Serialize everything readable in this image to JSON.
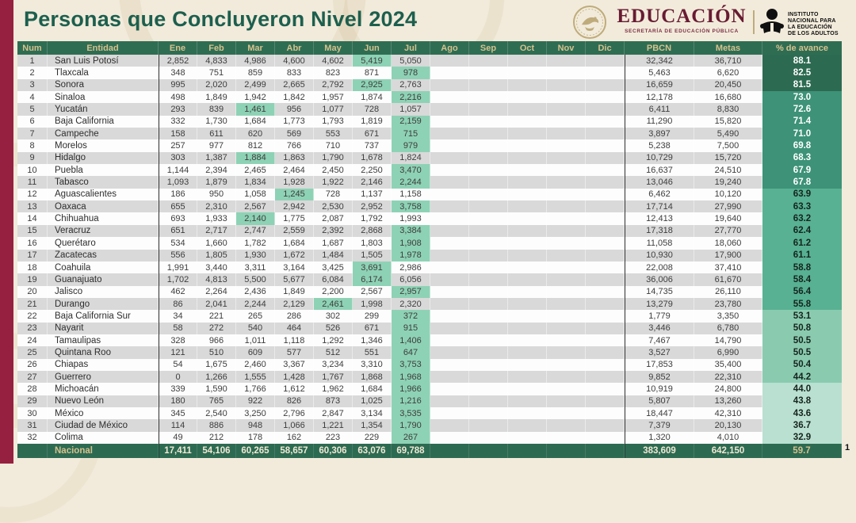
{
  "title": "Personas que Concluyeron Nivel 2024",
  "page_number": "1",
  "logos": {
    "educacion": {
      "name": "EDUCACIÓN",
      "subtitle": "SECRETARÍA DE EDUCACIÓN PÚBLICA"
    },
    "inea": {
      "line1": "INSTITUTO",
      "line2": "NACIONAL PARA",
      "line3": "LA EDUCACIÓN",
      "line4": "DE LOS ADULTOS"
    }
  },
  "colors": {
    "maroon_bar": "#96203f",
    "title_green": "#1d5f4e",
    "header_green": "#2f6d53",
    "header_text": "#d5c28e",
    "stripe_gray": "#d9d9d9",
    "highlight_mint": "#8ed2b5",
    "avance_bands": [
      "#2d6a52",
      "#3d9277",
      "#57b192",
      "#8acbb0",
      "#b9e0d1"
    ],
    "educacion_maroon": "#681b32",
    "gold": "#bfac7c"
  },
  "table": {
    "columns": [
      "Num",
      "Entidad",
      "Ene",
      "Feb",
      "Mar",
      "Abr",
      "May",
      "Jun",
      "Jul",
      "Ago",
      "Sep",
      "Oct",
      "Nov",
      "Dic",
      "PBCN",
      "Metas",
      "% de avance"
    ],
    "rows": [
      {
        "num": 1,
        "entidad": "San Luis Potosí",
        "months": [
          "2,852",
          "4,833",
          "4,986",
          "4,600",
          "4,602",
          "5,419",
          "5,050",
          "",
          "",
          "",
          "",
          ""
        ],
        "max_month": 5,
        "pbcn": "32,342",
        "metas": "36,710",
        "avance": "88.1",
        "band": 1
      },
      {
        "num": 2,
        "entidad": "Tlaxcala",
        "months": [
          "348",
          "751",
          "859",
          "833",
          "823",
          "871",
          "978",
          "",
          "",
          "",
          "",
          ""
        ],
        "max_month": 6,
        "pbcn": "5,463",
        "metas": "6,620",
        "avance": "82.5",
        "band": 1
      },
      {
        "num": 3,
        "entidad": "Sonora",
        "months": [
          "995",
          "2,020",
          "2,499",
          "2,665",
          "2,792",
          "2,925",
          "2,763",
          "",
          "",
          "",
          "",
          ""
        ],
        "max_month": 5,
        "pbcn": "16,659",
        "metas": "20,450",
        "avance": "81.5",
        "band": 1
      },
      {
        "num": 4,
        "entidad": "Sinaloa",
        "months": [
          "498",
          "1,849",
          "1,942",
          "1,842",
          "1,957",
          "1,874",
          "2,216",
          "",
          "",
          "",
          "",
          ""
        ],
        "max_month": 6,
        "pbcn": "12,178",
        "metas": "16,680",
        "avance": "73.0",
        "band": 2
      },
      {
        "num": 5,
        "entidad": "Yucatán",
        "months": [
          "293",
          "839",
          "1,461",
          "956",
          "1,077",
          "728",
          "1,057",
          "",
          "",
          "",
          "",
          ""
        ],
        "max_month": 2,
        "pbcn": "6,411",
        "metas": "8,830",
        "avance": "72.6",
        "band": 2
      },
      {
        "num": 6,
        "entidad": "Baja California",
        "months": [
          "332",
          "1,730",
          "1,684",
          "1,773",
          "1,793",
          "1,819",
          "2,159",
          "",
          "",
          "",
          "",
          ""
        ],
        "max_month": 6,
        "pbcn": "11,290",
        "metas": "15,820",
        "avance": "71.4",
        "band": 2
      },
      {
        "num": 7,
        "entidad": "Campeche",
        "months": [
          "158",
          "611",
          "620",
          "569",
          "553",
          "671",
          "715",
          "",
          "",
          "",
          "",
          ""
        ],
        "max_month": 6,
        "pbcn": "3,897",
        "metas": "5,490",
        "avance": "71.0",
        "band": 2
      },
      {
        "num": 8,
        "entidad": "Morelos",
        "months": [
          "257",
          "977",
          "812",
          "766",
          "710",
          "737",
          "979",
          "",
          "",
          "",
          "",
          ""
        ],
        "max_month": 6,
        "pbcn": "5,238",
        "metas": "7,500",
        "avance": "69.8",
        "band": 2
      },
      {
        "num": 9,
        "entidad": "Hidalgo",
        "months": [
          "303",
          "1,387",
          "1,884",
          "1,863",
          "1,790",
          "1,678",
          "1,824",
          "",
          "",
          "",
          "",
          ""
        ],
        "max_month": 2,
        "pbcn": "10,729",
        "metas": "15,720",
        "avance": "68.3",
        "band": 2
      },
      {
        "num": 10,
        "entidad": "Puebla",
        "months": [
          "1,144",
          "2,394",
          "2,465",
          "2,464",
          "2,450",
          "2,250",
          "3,470",
          "",
          "",
          "",
          "",
          ""
        ],
        "max_month": 6,
        "pbcn": "16,637",
        "metas": "24,510",
        "avance": "67.9",
        "band": 2
      },
      {
        "num": 11,
        "entidad": "Tabasco",
        "months": [
          "1,093",
          "1,879",
          "1,834",
          "1,928",
          "1,922",
          "2,146",
          "2,244",
          "",
          "",
          "",
          "",
          ""
        ],
        "max_month": 6,
        "pbcn": "13,046",
        "metas": "19,240",
        "avance": "67.8",
        "band": 2
      },
      {
        "num": 12,
        "entidad": "Aguascalientes",
        "months": [
          "186",
          "950",
          "1,058",
          "1,245",
          "728",
          "1,137",
          "1,158",
          "",
          "",
          "",
          "",
          ""
        ],
        "max_month": 3,
        "pbcn": "6,462",
        "metas": "10,120",
        "avance": "63.9",
        "band": 3
      },
      {
        "num": 13,
        "entidad": "Oaxaca",
        "months": [
          "655",
          "2,310",
          "2,567",
          "2,942",
          "2,530",
          "2,952",
          "3,758",
          "",
          "",
          "",
          "",
          ""
        ],
        "max_month": 6,
        "pbcn": "17,714",
        "metas": "27,990",
        "avance": "63.3",
        "band": 3
      },
      {
        "num": 14,
        "entidad": "Chihuahua",
        "months": [
          "693",
          "1,933",
          "2,140",
          "1,775",
          "2,087",
          "1,792",
          "1,993",
          "",
          "",
          "",
          "",
          ""
        ],
        "max_month": 2,
        "pbcn": "12,413",
        "metas": "19,640",
        "avance": "63.2",
        "band": 3
      },
      {
        "num": 15,
        "entidad": "Veracruz",
        "months": [
          "651",
          "2,717",
          "2,747",
          "2,559",
          "2,392",
          "2,868",
          "3,384",
          "",
          "",
          "",
          "",
          ""
        ],
        "max_month": 6,
        "pbcn": "17,318",
        "metas": "27,770",
        "avance": "62.4",
        "band": 3
      },
      {
        "num": 16,
        "entidad": "Querétaro",
        "months": [
          "534",
          "1,660",
          "1,782",
          "1,684",
          "1,687",
          "1,803",
          "1,908",
          "",
          "",
          "",
          "",
          ""
        ],
        "max_month": 6,
        "pbcn": "11,058",
        "metas": "18,060",
        "avance": "61.2",
        "band": 3
      },
      {
        "num": 17,
        "entidad": "Zacatecas",
        "months": [
          "556",
          "1,805",
          "1,930",
          "1,672",
          "1,484",
          "1,505",
          "1,978",
          "",
          "",
          "",
          "",
          ""
        ],
        "max_month": 6,
        "pbcn": "10,930",
        "metas": "17,900",
        "avance": "61.1",
        "band": 3
      },
      {
        "num": 18,
        "entidad": "Coahuila",
        "months": [
          "1,991",
          "3,440",
          "3,311",
          "3,164",
          "3,425",
          "3,691",
          "2,986",
          "",
          "",
          "",
          "",
          ""
        ],
        "max_month": 5,
        "pbcn": "22,008",
        "metas": "37,410",
        "avance": "58.8",
        "band": 3
      },
      {
        "num": 19,
        "entidad": "Guanajuato",
        "months": [
          "1,702",
          "4,813",
          "5,500",
          "5,677",
          "6,084",
          "6,174",
          "6,056",
          "",
          "",
          "",
          "",
          ""
        ],
        "max_month": 5,
        "pbcn": "36,006",
        "metas": "61,670",
        "avance": "58.4",
        "band": 3
      },
      {
        "num": 20,
        "entidad": "Jalisco",
        "months": [
          "462",
          "2,264",
          "2,436",
          "1,849",
          "2,200",
          "2,567",
          "2,957",
          "",
          "",
          "",
          "",
          ""
        ],
        "max_month": 6,
        "pbcn": "14,735",
        "metas": "26,110",
        "avance": "56.4",
        "band": 3
      },
      {
        "num": 21,
        "entidad": "Durango",
        "months": [
          "86",
          "2,041",
          "2,244",
          "2,129",
          "2,461",
          "1,998",
          "2,320",
          "",
          "",
          "",
          "",
          ""
        ],
        "max_month": 4,
        "pbcn": "13,279",
        "metas": "23,780",
        "avance": "55.8",
        "band": 3
      },
      {
        "num": 22,
        "entidad": "Baja California Sur",
        "months": [
          "34",
          "221",
          "265",
          "286",
          "302",
          "299",
          "372",
          "",
          "",
          "",
          "",
          ""
        ],
        "max_month": 6,
        "pbcn": "1,779",
        "metas": "3,350",
        "avance": "53.1",
        "band": 4
      },
      {
        "num": 23,
        "entidad": "Nayarit",
        "months": [
          "58",
          "272",
          "540",
          "464",
          "526",
          "671",
          "915",
          "",
          "",
          "",
          "",
          ""
        ],
        "max_month": 6,
        "pbcn": "3,446",
        "metas": "6,780",
        "avance": "50.8",
        "band": 4
      },
      {
        "num": 24,
        "entidad": "Tamaulipas",
        "months": [
          "328",
          "966",
          "1,011",
          "1,118",
          "1,292",
          "1,346",
          "1,406",
          "",
          "",
          "",
          "",
          ""
        ],
        "max_month": 6,
        "pbcn": "7,467",
        "metas": "14,790",
        "avance": "50.5",
        "band": 4
      },
      {
        "num": 25,
        "entidad": "Quintana Roo",
        "months": [
          "121",
          "510",
          "609",
          "577",
          "512",
          "551",
          "647",
          "",
          "",
          "",
          "",
          ""
        ],
        "max_month": 6,
        "pbcn": "3,527",
        "metas": "6,990",
        "avance": "50.5",
        "band": 4
      },
      {
        "num": 26,
        "entidad": "Chiapas",
        "months": [
          "54",
          "1,675",
          "2,460",
          "3,367",
          "3,234",
          "3,310",
          "3,753",
          "",
          "",
          "",
          "",
          ""
        ],
        "max_month": 6,
        "pbcn": "17,853",
        "metas": "35,400",
        "avance": "50.4",
        "band": 4
      },
      {
        "num": 27,
        "entidad": "Guerrero",
        "months": [
          "0",
          "1,266",
          "1,555",
          "1,428",
          "1,767",
          "1,868",
          "1,968",
          "",
          "",
          "",
          "",
          ""
        ],
        "max_month": 6,
        "pbcn": "9,852",
        "metas": "22,310",
        "avance": "44.2",
        "band": 4
      },
      {
        "num": 28,
        "entidad": "Michoacán",
        "months": [
          "339",
          "1,590",
          "1,766",
          "1,612",
          "1,962",
          "1,684",
          "1,966",
          "",
          "",
          "",
          "",
          ""
        ],
        "max_month": 6,
        "pbcn": "10,919",
        "metas": "24,800",
        "avance": "44.0",
        "band": 5
      },
      {
        "num": 29,
        "entidad": "Nuevo León",
        "months": [
          "180",
          "765",
          "922",
          "826",
          "873",
          "1,025",
          "1,216",
          "",
          "",
          "",
          "",
          ""
        ],
        "max_month": 6,
        "pbcn": "5,807",
        "metas": "13,260",
        "avance": "43.8",
        "band": 5
      },
      {
        "num": 30,
        "entidad": "México",
        "months": [
          "345",
          "2,540",
          "3,250",
          "2,796",
          "2,847",
          "3,134",
          "3,535",
          "",
          "",
          "",
          "",
          ""
        ],
        "max_month": 6,
        "pbcn": "18,447",
        "metas": "42,310",
        "avance": "43.6",
        "band": 5
      },
      {
        "num": 31,
        "entidad": "Ciudad de México",
        "months": [
          "114",
          "886",
          "948",
          "1,066",
          "1,221",
          "1,354",
          "1,790",
          "",
          "",
          "",
          "",
          ""
        ],
        "max_month": 6,
        "pbcn": "7,379",
        "metas": "20,130",
        "avance": "36.7",
        "band": 5
      },
      {
        "num": 32,
        "entidad": "Colima",
        "months": [
          "49",
          "212",
          "178",
          "162",
          "223",
          "229",
          "267",
          "",
          "",
          "",
          "",
          ""
        ],
        "max_month": 6,
        "pbcn": "1,320",
        "metas": "4,010",
        "avance": "32.9",
        "band": 5
      }
    ],
    "nacional": {
      "label": "Nacional",
      "months": [
        "17,411",
        "54,106",
        "60,265",
        "58,657",
        "60,306",
        "63,076",
        "69,788",
        "",
        "",
        "",
        "",
        ""
      ],
      "pbcn": "383,609",
      "metas": "642,150",
      "avance": "59.7"
    }
  }
}
